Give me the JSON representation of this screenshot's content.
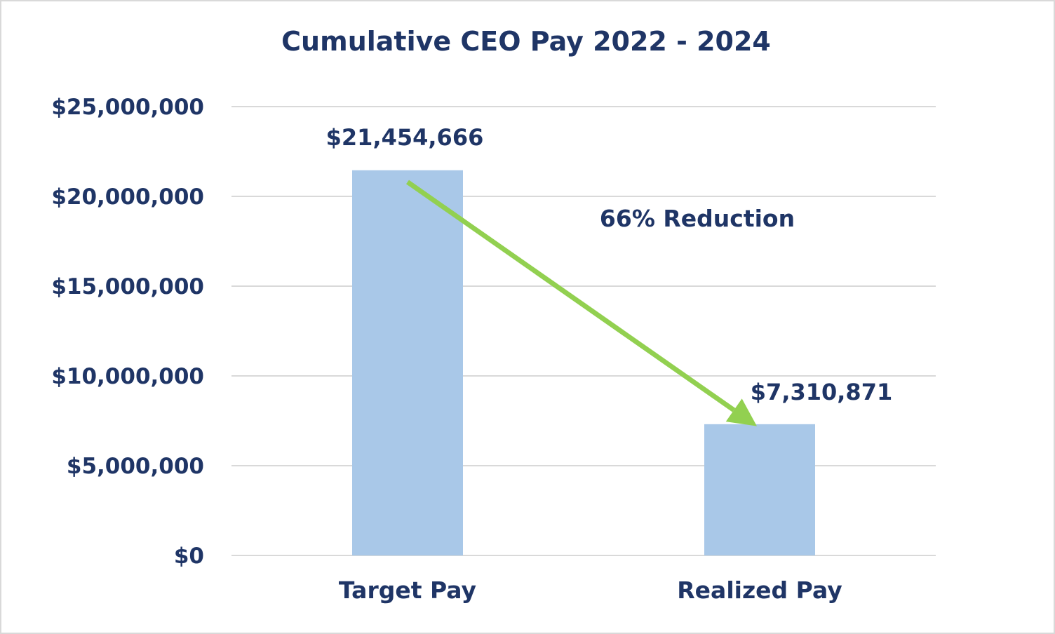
{
  "chart_data": {
    "type": "bar",
    "title": "Cumulative CEO Pay 2022 - 2024",
    "categories": [
      "Target Pay",
      "Realized Pay"
    ],
    "values": [
      21454666,
      7310871
    ],
    "data_labels": [
      "$21,454,666",
      "$7,310,871"
    ],
    "ylim": [
      0,
      25000000
    ],
    "yticks": [
      0,
      5000000,
      10000000,
      15000000,
      20000000,
      25000000
    ],
    "ytick_labels": [
      "$0",
      "$5,000,000",
      "$10,000,000",
      "$15,000,000",
      "$20,000,000",
      "$25,000,000"
    ],
    "xlabel": "",
    "ylabel": "",
    "grid": true,
    "annotation": {
      "text": "66% Reduction",
      "arrow_from": [
        "Target Pay",
        20800000
      ],
      "arrow_to": [
        "Realized Pay",
        7200000
      ]
    },
    "colors": {
      "bar": "#a9c8e8",
      "arrow": "#92d050",
      "text": "#1f3566",
      "grid": "#d9d9d9"
    }
  }
}
